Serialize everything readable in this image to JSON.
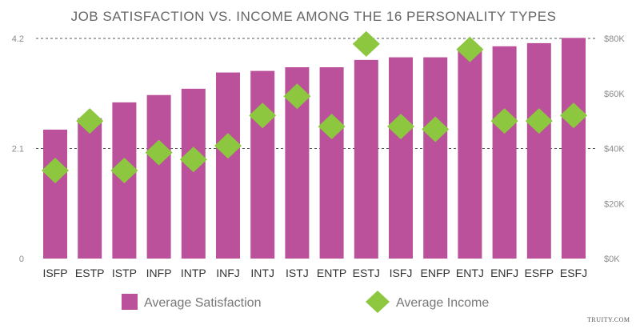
{
  "chart_data": {
    "type": "bar",
    "title": "JOB SATISFACTION VS. INCOME AMONG THE 16 PERSONALITY TYPES",
    "categories": [
      "ISFP",
      "ESTP",
      "ISTP",
      "INFP",
      "INTP",
      "INFJ",
      "INTJ",
      "ISTJ",
      "ENTP",
      "ESTJ",
      "ISFJ",
      "ENFP",
      "ENTJ",
      "ENFJ",
      "ESFP",
      "ESFJ"
    ],
    "series": [
      {
        "name": "Average Satisfaction",
        "type": "bar",
        "axis": "left",
        "color": "#bb519b",
        "values": [
          2.46,
          2.68,
          2.98,
          3.12,
          3.24,
          3.55,
          3.58,
          3.65,
          3.65,
          3.79,
          3.84,
          3.84,
          3.97,
          4.05,
          4.11,
          4.21
        ]
      },
      {
        "name": "Average Income",
        "type": "scatter",
        "marker": "diamond",
        "axis": "right",
        "color": "#8dc63f",
        "values": [
          32000,
          50000,
          32000,
          38500,
          36000,
          41000,
          52000,
          59000,
          48000,
          78000,
          48000,
          47000,
          76000,
          50000,
          50000,
          52000
        ]
      }
    ],
    "y_left": {
      "ticks": [
        "4.2",
        "2.1",
        "0"
      ],
      "ylim": [
        0,
        4.2
      ]
    },
    "y_right": {
      "ticks": [
        "$80K",
        "$60K",
        "$40K",
        "$20K",
        "$0K"
      ],
      "ylim": [
        0,
        80000
      ]
    },
    "dashed_gridlines_at": [
      2.1,
      4.2
    ],
    "legend": {
      "placement": "bottom",
      "entries": [
        "Average Satisfaction",
        "Average Income"
      ]
    },
    "credit": "TRUITY.COM"
  }
}
